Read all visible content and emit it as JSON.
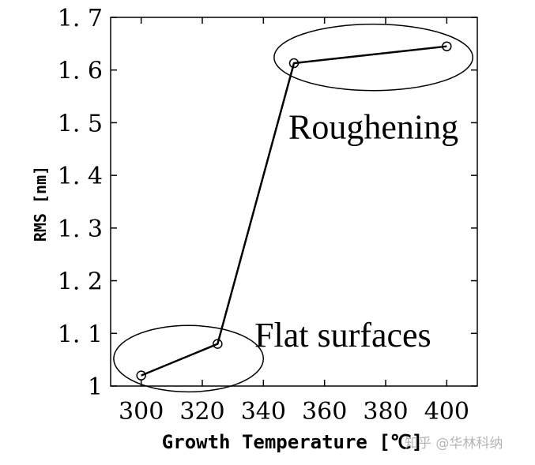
{
  "chart_data": {
    "type": "line",
    "xlabel": "Growth Temperature [℃]",
    "ylabel": "RMS [nm]",
    "xlim": [
      290,
      410
    ],
    "ylim": [
      1.0,
      1.7
    ],
    "xticks": [
      300,
      320,
      340,
      360,
      380,
      400
    ],
    "yticks": [
      1.0,
      1.1,
      1.2,
      1.3,
      1.4,
      1.5,
      1.6,
      1.7
    ],
    "ytick_labels": [
      "1",
      "1. 1",
      "1. 2",
      "1. 3",
      "1. 4",
      "1. 5",
      "1. 6",
      "1. 7"
    ],
    "series": [
      {
        "x": [
          300,
          325,
          350,
          400
        ],
        "y": [
          1.02,
          1.08,
          1.613,
          1.645
        ],
        "marker": "open-circle",
        "color": "#000000"
      }
    ],
    "grid": false,
    "annotations": [
      {
        "text": "Roughening",
        "x": 376,
        "y": 1.47
      },
      {
        "text": "Flat surfaces",
        "x": 366,
        "y": 1.075
      }
    ],
    "ellipses": [
      {
        "name": "roughening-ellipse",
        "cx": 376,
        "cy": 1.624,
        "rx": 32.5,
        "ry": 0.063
      },
      {
        "name": "flat-ellipse",
        "cx": 315.5,
        "cy": 1.052,
        "rx": 24.5,
        "ry": 0.063
      }
    ]
  },
  "watermark": "知乎 @华林科纳"
}
